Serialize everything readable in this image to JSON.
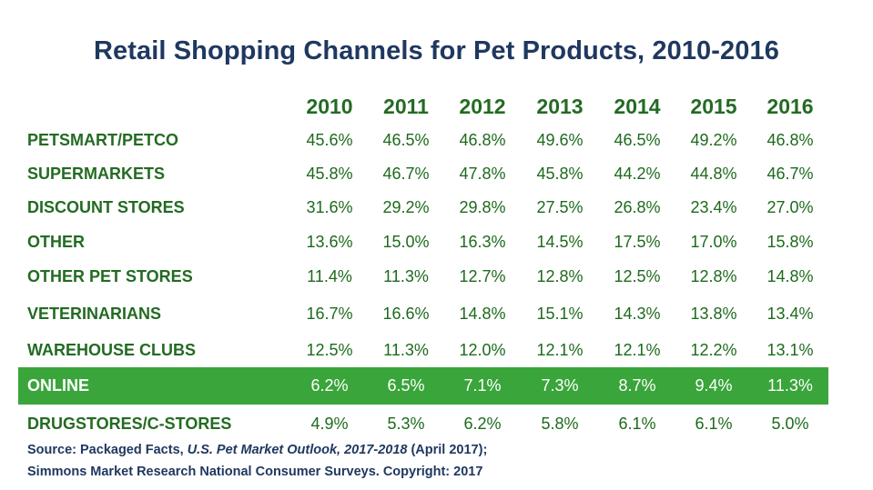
{
  "chart_data": {
    "type": "table",
    "title": "Retail Shopping Channels for Pet Products, 2010-2016",
    "columns": [
      "2010",
      "2011",
      "2012",
      "2013",
      "2014",
      "2015",
      "2016"
    ],
    "rows": [
      {
        "label": "PETSMART/PETCO",
        "values": [
          "45.6%",
          "46.5%",
          "46.8%",
          "49.6%",
          "46.5%",
          "49.2%",
          "46.8%"
        ]
      },
      {
        "label": "SUPERMARKETS",
        "values": [
          "45.8%",
          "46.7%",
          "47.8%",
          "45.8%",
          "44.2%",
          "44.8%",
          "46.7%"
        ]
      },
      {
        "label": "DISCOUNT STORES",
        "values": [
          "31.6%",
          "29.2%",
          "29.8%",
          "27.5%",
          "26.8%",
          "23.4%",
          "27.0%"
        ]
      },
      {
        "label": "OTHER",
        "values": [
          "13.6%",
          "15.0%",
          "16.3%",
          "14.5%",
          "17.5%",
          "17.0%",
          "15.8%"
        ]
      },
      {
        "label": "OTHER PET STORES",
        "values": [
          "11.4%",
          "11.3%",
          "12.7%",
          "12.8%",
          "12.5%",
          "12.8%",
          "14.8%"
        ]
      },
      {
        "label": "VETERINARIANS",
        "values": [
          "16.7%",
          "16.6%",
          "14.8%",
          "15.1%",
          "14.3%",
          "13.8%",
          "13.4%"
        ]
      },
      {
        "label": "WAREHOUSE CLUBS",
        "values": [
          "12.5%",
          "11.3%",
          "12.0%",
          "12.1%",
          "12.1%",
          "12.2%",
          "13.1%"
        ]
      },
      {
        "label": "ONLINE",
        "values": [
          "6.2%",
          "6.5%",
          "7.1%",
          "7.3%",
          "8.7%",
          "9.4%",
          "11.3%"
        ],
        "highlighted": true
      },
      {
        "label": "DRUGSTORES/C-STORES",
        "values": [
          "4.9%",
          "5.3%",
          "6.2%",
          "5.8%",
          "6.1%",
          "6.1%",
          "5.0%"
        ]
      }
    ],
    "colors": {
      "title": "#1f3860",
      "text": "#236b22",
      "highlight_bg": "#3aa53a",
      "highlight_text": "#ffffff"
    }
  },
  "source": {
    "line1_prefix": "Source:  Packaged Facts, ",
    "line1_italic": "U.S. Pet Market Outlook, 2017-2018",
    "line1_suffix": " (April 2017);",
    "line2": "Simmons Market Research National Consumer Surveys.  Copyright: 2017"
  }
}
